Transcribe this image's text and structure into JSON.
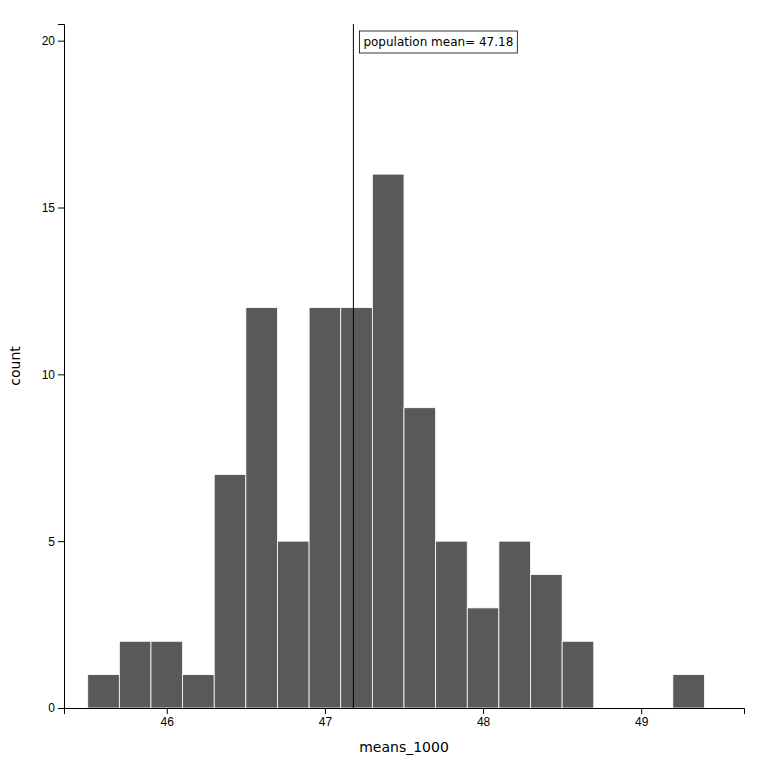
{
  "chart_data": {
    "type": "histogram",
    "bins": [
      45.5,
      45.7,
      45.9,
      46.1,
      46.3,
      46.5,
      46.7,
      46.9,
      47.1,
      47.3,
      47.5,
      47.7,
      47.9,
      48.1,
      48.3,
      48.5,
      48.7,
      49.2,
      49.4
    ],
    "values": [
      1,
      2,
      2,
      1,
      7,
      12,
      5,
      12,
      12,
      16,
      9,
      5,
      3,
      5,
      4,
      2,
      0,
      1
    ],
    "color": "#595959",
    "xlabel": "means_1000",
    "ylabel": "count",
    "xlim": [
      45.35,
      49.65
    ],
    "ylim": [
      0,
      20.5
    ],
    "xticks": [
      46,
      47,
      48,
      49
    ],
    "yticks": [
      0,
      5,
      10,
      15,
      20
    ],
    "grid": false,
    "annotations": [
      {
        "x": 47.18,
        "text": "population mean= 47.18"
      }
    ]
  }
}
